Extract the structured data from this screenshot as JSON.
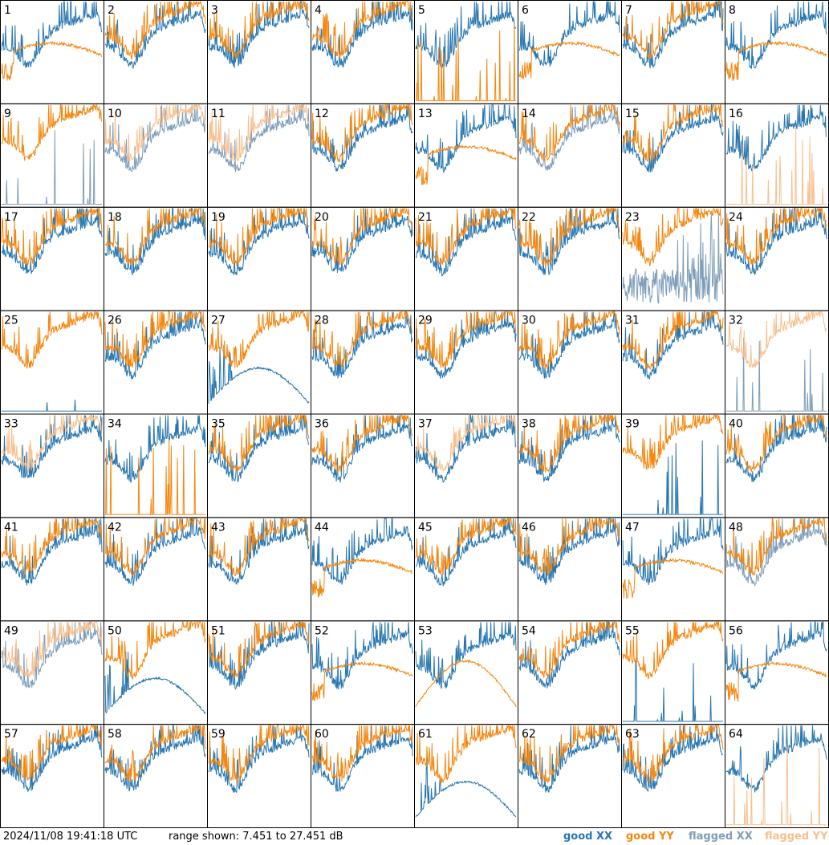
{
  "timestamp": "2024/11/08 19:41:18 UTC",
  "range_text": "range shown: 7.451 to 27.451 dB",
  "legend": [
    {
      "key": "good_xx",
      "label": "good XX",
      "color": "#2876b0"
    },
    {
      "key": "good_yy",
      "label": "good YY",
      "color": "#f5870f"
    },
    {
      "key": "flagged_xx",
      "label": "flagged XX",
      "color": "#7f9db8"
    },
    {
      "key": "flagged_yy",
      "label": "flagged YY",
      "color": "#f8c08f"
    }
  ],
  "chart_data": {
    "type": "line",
    "ylim": [
      7.451,
      27.451
    ],
    "units": "dB",
    "grid": {
      "rows": 8,
      "cols": 8
    },
    "panels": [
      {
        "label": "1",
        "xx": "good",
        "yy": "good",
        "shape": "hump"
      },
      {
        "label": "2",
        "xx": "good",
        "yy": "good",
        "shape": "normal"
      },
      {
        "label": "3",
        "xx": "good",
        "yy": "good",
        "shape": "normal"
      },
      {
        "label": "4",
        "xx": "good",
        "yy": "good",
        "shape": "normal"
      },
      {
        "label": "5",
        "xx": "good",
        "yy": "good",
        "shape": "yy_low"
      },
      {
        "label": "6",
        "xx": "good",
        "yy": "good",
        "shape": "hump"
      },
      {
        "label": "7",
        "xx": "good",
        "yy": "good",
        "shape": "normal"
      },
      {
        "label": "8",
        "xx": "good",
        "yy": "good",
        "shape": "hump"
      },
      {
        "label": "9",
        "xx": "flagged",
        "yy": "good",
        "shape": "xx_low"
      },
      {
        "label": "10",
        "xx": "flagged",
        "yy": "flagged",
        "shape": "normal"
      },
      {
        "label": "11",
        "xx": "flagged",
        "yy": "flagged",
        "shape": "normal"
      },
      {
        "label": "12",
        "xx": "good",
        "yy": "good",
        "shape": "normal"
      },
      {
        "label": "13",
        "xx": "good",
        "yy": "good",
        "shape": "hump"
      },
      {
        "label": "14",
        "xx": "flagged",
        "yy": "good",
        "shape": "normal"
      },
      {
        "label": "15",
        "xx": "good",
        "yy": "good",
        "shape": "normal"
      },
      {
        "label": "16",
        "xx": "good",
        "yy": "flagged",
        "shape": "yy_low"
      },
      {
        "label": "17",
        "xx": "good",
        "yy": "good",
        "shape": "normal"
      },
      {
        "label": "18",
        "xx": "good",
        "yy": "good",
        "shape": "normal"
      },
      {
        "label": "19",
        "xx": "good",
        "yy": "good",
        "shape": "normal"
      },
      {
        "label": "20",
        "xx": "good",
        "yy": "good",
        "shape": "normal"
      },
      {
        "label": "21",
        "xx": "good",
        "yy": "good",
        "shape": "normal"
      },
      {
        "label": "22",
        "xx": "good",
        "yy": "good",
        "shape": "normal"
      },
      {
        "label": "23",
        "xx": "flagged",
        "yy": "good",
        "shape": "xx_mid"
      },
      {
        "label": "24",
        "xx": "good",
        "yy": "good",
        "shape": "normal"
      },
      {
        "label": "25",
        "xx": "good",
        "yy": "good",
        "shape": "xx_low"
      },
      {
        "label": "26",
        "xx": "good",
        "yy": "good",
        "shape": "normal"
      },
      {
        "label": "27",
        "xx": "good",
        "yy": "good",
        "shape": "hump_xx"
      },
      {
        "label": "28",
        "xx": "good",
        "yy": "good",
        "shape": "normal"
      },
      {
        "label": "29",
        "xx": "good",
        "yy": "good",
        "shape": "normal"
      },
      {
        "label": "30",
        "xx": "good",
        "yy": "good",
        "shape": "normal"
      },
      {
        "label": "31",
        "xx": "good",
        "yy": "good",
        "shape": "normal"
      },
      {
        "label": "32",
        "xx": "flagged",
        "yy": "flagged",
        "shape": "xx_low"
      },
      {
        "label": "33",
        "xx": "good",
        "yy": "flagged",
        "shape": "normal"
      },
      {
        "label": "34",
        "xx": "good",
        "yy": "good",
        "shape": "yy_low"
      },
      {
        "label": "35",
        "xx": "good",
        "yy": "good",
        "shape": "normal"
      },
      {
        "label": "36",
        "xx": "good",
        "yy": "good",
        "shape": "normal"
      },
      {
        "label": "37",
        "xx": "good",
        "yy": "flagged",
        "shape": "normal"
      },
      {
        "label": "38",
        "xx": "good",
        "yy": "good",
        "shape": "normal"
      },
      {
        "label": "39",
        "xx": "good",
        "yy": "good",
        "shape": "xx_low"
      },
      {
        "label": "40",
        "xx": "good",
        "yy": "good",
        "shape": "normal"
      },
      {
        "label": "41",
        "xx": "good",
        "yy": "good",
        "shape": "normal"
      },
      {
        "label": "42",
        "xx": "good",
        "yy": "good",
        "shape": "normal"
      },
      {
        "label": "43",
        "xx": "good",
        "yy": "good",
        "shape": "normal"
      },
      {
        "label": "44",
        "xx": "good",
        "yy": "good",
        "shape": "hump"
      },
      {
        "label": "45",
        "xx": "good",
        "yy": "good",
        "shape": "normal"
      },
      {
        "label": "46",
        "xx": "good",
        "yy": "good",
        "shape": "normal"
      },
      {
        "label": "47",
        "xx": "good",
        "yy": "good",
        "shape": "hump"
      },
      {
        "label": "48",
        "xx": "flagged",
        "yy": "good",
        "shape": "normal"
      },
      {
        "label": "49",
        "xx": "flagged",
        "yy": "flagged",
        "shape": "normal"
      },
      {
        "label": "50",
        "xx": "good",
        "yy": "good",
        "shape": "hump_xx"
      },
      {
        "label": "51",
        "xx": "good",
        "yy": "good",
        "shape": "normal"
      },
      {
        "label": "52",
        "xx": "good",
        "yy": "good",
        "shape": "hump"
      },
      {
        "label": "53",
        "xx": "good",
        "yy": "good",
        "shape": "hump_yy"
      },
      {
        "label": "54",
        "xx": "good",
        "yy": "good",
        "shape": "normal"
      },
      {
        "label": "55",
        "xx": "good",
        "yy": "good",
        "shape": "xx_low"
      },
      {
        "label": "56",
        "xx": "good",
        "yy": "good",
        "shape": "hump"
      },
      {
        "label": "57",
        "xx": "good",
        "yy": "good",
        "shape": "normal"
      },
      {
        "label": "58",
        "xx": "good",
        "yy": "good",
        "shape": "normal"
      },
      {
        "label": "59",
        "xx": "good",
        "yy": "good",
        "shape": "normal"
      },
      {
        "label": "60",
        "xx": "good",
        "yy": "good",
        "shape": "normal"
      },
      {
        "label": "61",
        "xx": "good",
        "yy": "good",
        "shape": "hump_xx"
      },
      {
        "label": "62",
        "xx": "good",
        "yy": "good",
        "shape": "normal"
      },
      {
        "label": "63",
        "xx": "good",
        "yy": "good",
        "shape": "normal"
      },
      {
        "label": "64",
        "xx": "good",
        "yy": "flagged",
        "shape": "yy_low"
      }
    ]
  }
}
